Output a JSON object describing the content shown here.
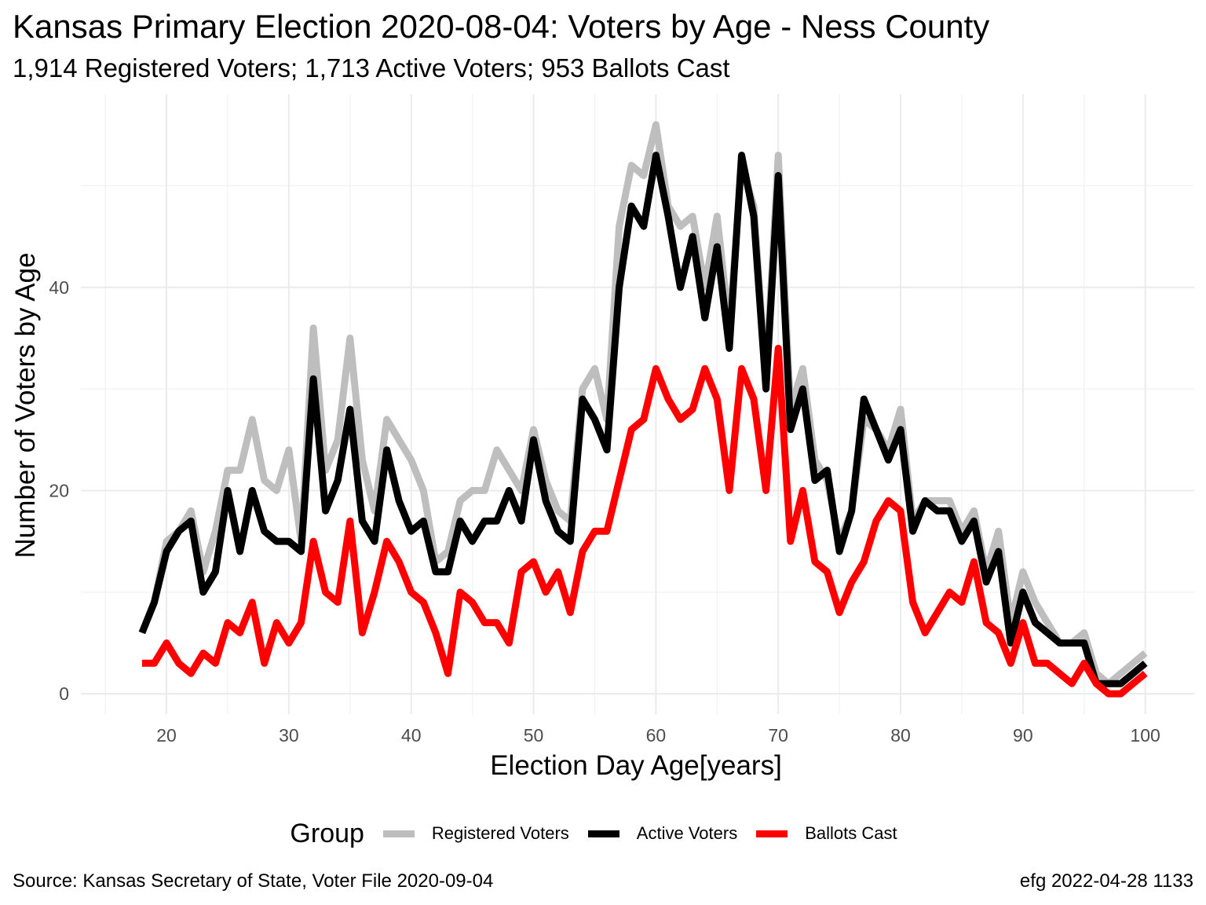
{
  "title": "Kansas Primary Election 2020-08-04:  Voters by Age - Ness County",
  "subtitle": "1,914 Registered Voters; 1,713 Active Voters; 953 Ballots Cast",
  "caption_left": "Source:  Kansas Secretary of State, Voter File  2020-09-04",
  "caption_right": "efg 2022-04-28 1133",
  "legend": {
    "title": "Group",
    "position": "bottom",
    "items": [
      {
        "label": "Registered Voters",
        "color": "#bebebe"
      },
      {
        "label": "Active Voters",
        "color": "#000000"
      },
      {
        "label": "Ballots Cast",
        "color": "#ff0000"
      }
    ]
  },
  "chart_data": {
    "type": "line",
    "xlabel": "Election Day Age[years]",
    "ylabel": "Number of Voters by Age",
    "xlim": [
      13,
      104
    ],
    "ylim": [
      -2,
      59
    ],
    "xticks": [
      20,
      30,
      40,
      50,
      60,
      70,
      80,
      90,
      100
    ],
    "yticks": [
      0,
      20,
      40
    ],
    "grid": true,
    "x": [
      18,
      19,
      20,
      21,
      22,
      23,
      24,
      25,
      26,
      27,
      28,
      29,
      30,
      31,
      32,
      33,
      34,
      35,
      36,
      37,
      38,
      39,
      40,
      41,
      42,
      43,
      44,
      45,
      46,
      47,
      48,
      49,
      50,
      51,
      52,
      53,
      54,
      55,
      56,
      57,
      58,
      59,
      60,
      61,
      62,
      63,
      64,
      65,
      66,
      67,
      68,
      69,
      70,
      71,
      72,
      73,
      74,
      75,
      76,
      77,
      78,
      79,
      80,
      81,
      82,
      83,
      84,
      85,
      86,
      87,
      88,
      89,
      90,
      91,
      92,
      93,
      94,
      95,
      96,
      97,
      98,
      99,
      100
    ],
    "series": [
      {
        "name": "Registered Voters",
        "color": "#bebebe",
        "values": [
          6,
          9,
          15,
          16,
          18,
          12,
          16,
          22,
          22,
          27,
          21,
          20,
          24,
          15,
          36,
          22,
          25,
          35,
          23,
          18,
          27,
          25,
          23,
          20,
          13,
          14,
          19,
          20,
          20,
          24,
          22,
          20,
          26,
          21,
          18,
          17,
          30,
          32,
          27,
          46,
          52,
          51,
          56,
          48,
          46,
          47,
          40,
          47,
          36,
          52,
          48,
          31,
          53,
          28,
          32,
          23,
          21,
          15,
          18,
          27,
          26,
          24,
          28,
          17,
          19,
          19,
          19,
          16,
          18,
          12,
          16,
          7,
          12,
          9,
          7,
          5,
          5,
          6,
          2,
          1,
          2,
          3,
          4
        ]
      },
      {
        "name": "Active Voters",
        "color": "#000000",
        "values": [
          6,
          9,
          14,
          16,
          17,
          10,
          12,
          20,
          14,
          20,
          16,
          15,
          15,
          14,
          31,
          18,
          21,
          28,
          17,
          15,
          24,
          19,
          16,
          17,
          12,
          12,
          17,
          15,
          17,
          17,
          20,
          17,
          25,
          19,
          16,
          15,
          29,
          27,
          24,
          40,
          48,
          46,
          53,
          47,
          40,
          45,
          37,
          44,
          34,
          53,
          47,
          30,
          51,
          26,
          30,
          21,
          22,
          14,
          18,
          29,
          26,
          23,
          26,
          16,
          19,
          18,
          18,
          15,
          17,
          11,
          14,
          5,
          10,
          7,
          6,
          5,
          5,
          5,
          1,
          1,
          1,
          2,
          3
        ]
      },
      {
        "name": "Ballots Cast",
        "color": "#ff0000",
        "values": [
          3,
          3,
          5,
          3,
          2,
          4,
          3,
          7,
          6,
          9,
          3,
          7,
          5,
          7,
          15,
          10,
          9,
          17,
          6,
          10,
          15,
          13,
          10,
          9,
          6,
          2,
          10,
          9,
          7,
          7,
          5,
          12,
          13,
          10,
          12,
          8,
          14,
          16,
          16,
          21,
          26,
          27,
          32,
          29,
          27,
          28,
          32,
          29,
          20,
          32,
          29,
          20,
          34,
          15,
          20,
          13,
          12,
          8,
          11,
          13,
          17,
          19,
          18,
          9,
          6,
          8,
          10,
          9,
          13,
          7,
          6,
          3,
          7,
          3,
          3,
          2,
          1,
          3,
          1,
          0,
          0,
          1,
          2
        ]
      }
    ]
  }
}
